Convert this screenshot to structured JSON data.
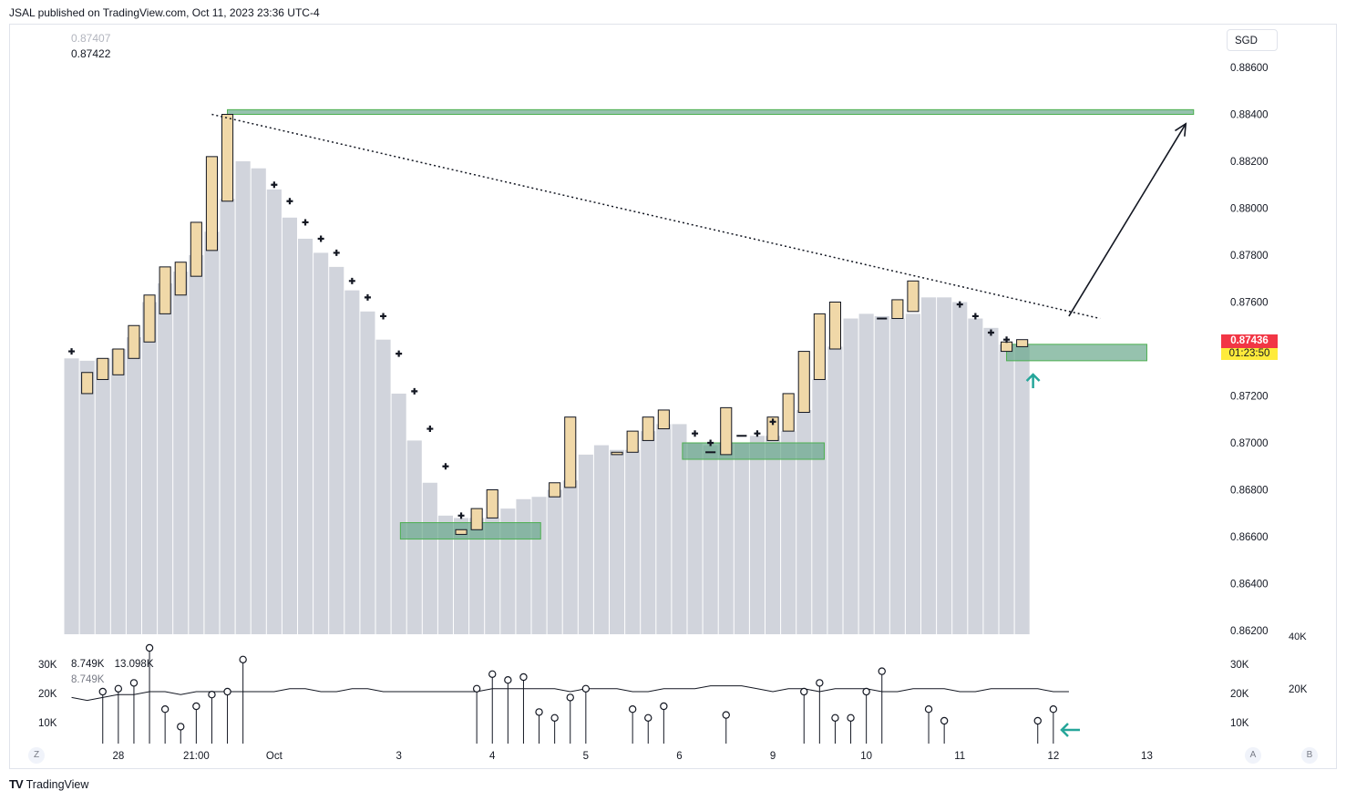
{
  "header": {
    "published": "JSAL published on TradingView.com, Oct 11, 2023 23:36 UTC-4"
  },
  "legend": {
    "prev_value": "0.87407",
    "cur_value": "0.87422"
  },
  "volume_legend": {
    "values": [
      "8.749K",
      "13.098K"
    ],
    "secondary": "8.749K"
  },
  "currency_button": "SGD",
  "last_price": {
    "price": "0.87436",
    "countdown": "01:23:50"
  },
  "footer": {
    "logo": "TV",
    "brand": "TradingView"
  },
  "buttons": {
    "zoom": "Z",
    "auto": "A",
    "log": "B"
  },
  "colors": {
    "up_body": "#f0d8a8",
    "bar_bg": "#d1d4dc",
    "zone_fill": "#6aa88c",
    "zone_border": "#4caf50",
    "last_price": "#f23645",
    "arrow": "#26a69a"
  },
  "chart_data": {
    "type": "candlestick",
    "y_ticks": [
      "0.88600",
      "0.88400",
      "0.88200",
      "0.88000",
      "0.87800",
      "0.87600",
      "0.87400",
      "0.87200",
      "0.87000",
      "0.86800",
      "0.86600",
      "0.86400",
      "0.86200"
    ],
    "ylim": [
      0.862,
      0.888
    ],
    "x_labels": [
      {
        "label": "28",
        "idx": 3.5
      },
      {
        "label": "21:00",
        "idx": 8.5
      },
      {
        "label": "Oct",
        "idx": 13.5
      },
      {
        "label": "3",
        "idx": 21.5
      },
      {
        "label": "4",
        "idx": 27.5
      },
      {
        "label": "5",
        "idx": 33.5
      },
      {
        "label": "6",
        "idx": 39.5
      },
      {
        "label": "9",
        "idx": 45.5
      },
      {
        "label": "10",
        "idx": 51.5
      },
      {
        "label": "11",
        "idx": 57.5
      },
      {
        "label": "12",
        "idx": 63.5
      },
      {
        "label": "13",
        "idx": 69.5
      }
    ],
    "bars": [
      {
        "h": 0.8736,
        "cross": 0.8739
      },
      {
        "h": 0.8735,
        "o": 0.8721,
        "c": 0.873
      },
      {
        "h": 0.8736,
        "o": 0.8727,
        "c": 0.8736
      },
      {
        "h": 0.874,
        "o": 0.8729,
        "c": 0.874
      },
      {
        "h": 0.8745,
        "o": 0.8736,
        "c": 0.875
      },
      {
        "h": 0.876,
        "o": 0.8743,
        "c": 0.8763
      },
      {
        "h": 0.8768,
        "o": 0.8755,
        "c": 0.8775
      },
      {
        "h": 0.8773,
        "o": 0.8763,
        "c": 0.8777
      },
      {
        "h": 0.878,
        "o": 0.8771,
        "c": 0.8794
      },
      {
        "h": 0.879,
        "o": 0.8782,
        "c": 0.8822
      },
      {
        "h": 0.8804,
        "o": 0.8803,
        "c": 0.884
      },
      {
        "h": 0.882
      },
      {
        "h": 0.8817
      },
      {
        "h": 0.8808,
        "cross": 0.881
      },
      {
        "h": 0.8796,
        "cross": 0.8803
      },
      {
        "h": 0.8787,
        "cross": 0.8794
      },
      {
        "h": 0.8781,
        "cross": 0.8787
      },
      {
        "h": 0.8775,
        "cross": 0.8781
      },
      {
        "h": 0.8765,
        "cross": 0.8769
      },
      {
        "h": 0.8756,
        "cross": 0.8762
      },
      {
        "h": 0.8744,
        "cross": 0.8754
      },
      {
        "h": 0.8721,
        "cross": 0.8738
      },
      {
        "h": 0.8701,
        "cross": 0.8722
      },
      {
        "h": 0.8683,
        "cross": 0.8706
      },
      {
        "h": 0.8669,
        "cross": 0.869
      },
      {
        "h": 0.8668,
        "o": 0.8663,
        "c": 0.8661,
        "cross": 0.8669
      },
      {
        "h": 0.8668,
        "o": 0.8663,
        "c": 0.8672
      },
      {
        "h": 0.8668,
        "o": 0.8668,
        "c": 0.868
      },
      {
        "h": 0.8672
      },
      {
        "h": 0.8676
      },
      {
        "h": 0.8677
      },
      {
        "h": 0.868,
        "o": 0.8677,
        "c": 0.8683
      },
      {
        "h": 0.8684,
        "o": 0.8681,
        "c": 0.8711
      },
      {
        "h": 0.8695
      },
      {
        "h": 0.8699
      },
      {
        "h": 0.8697,
        "o": 0.8696,
        "c": 0.8695
      },
      {
        "h": 0.8697,
        "o": 0.8696,
        "c": 0.8705
      },
      {
        "h": 0.8705,
        "o": 0.8701,
        "c": 0.8711
      },
      {
        "h": 0.8708,
        "o": 0.8706,
        "c": 0.8714
      },
      {
        "h": 0.8708
      },
      {
        "h": 0.87,
        "cross": 0.8704
      },
      {
        "h": 0.8699,
        "o": 0.8696,
        "c": 0.8696,
        "cross": 0.87
      },
      {
        "h": 0.87,
        "o": 0.8695,
        "c": 0.8715
      },
      {
        "h": 0.87,
        "o": 0.8703,
        "c": 0.8703
      },
      {
        "h": 0.8703,
        "cross": 0.8704
      },
      {
        "h": 0.8703,
        "o": 0.8701,
        "c": 0.8711,
        "cross": 0.8709
      },
      {
        "h": 0.8705,
        "o": 0.8705,
        "c": 0.8721
      },
      {
        "h": 0.8714,
        "o": 0.8713,
        "c": 0.8739
      },
      {
        "h": 0.8727,
        "o": 0.8727,
        "c": 0.8755
      },
      {
        "h": 0.8741,
        "o": 0.874,
        "c": 0.876
      },
      {
        "h": 0.8753
      },
      {
        "h": 0.8755
      },
      {
        "h": 0.8754,
        "o": 0.8753,
        "c": 0.8753
      },
      {
        "h": 0.8753,
        "o": 0.8753,
        "c": 0.8761
      },
      {
        "h": 0.8755,
        "o": 0.8756,
        "c": 0.8769
      },
      {
        "h": 0.8762
      },
      {
        "h": 0.8762
      },
      {
        "h": 0.876,
        "cross": 0.8759
      },
      {
        "h": 0.8753,
        "cross": 0.8754
      },
      {
        "h": 0.8749,
        "cross": 0.8747
      },
      {
        "h": 0.8742,
        "o": 0.8739,
        "c": 0.8743,
        "cross": 0.8744
      },
      {
        "h": 0.8742,
        "o": 0.8741,
        "c": 0.8744
      }
    ],
    "zones": [
      {
        "i0": 10.5,
        "i1": 72.5,
        "y0": 0.8842,
        "y1": 0.884
      },
      {
        "i0": 21.6,
        "i1": 30.6,
        "y0": 0.8666,
        "y1": 0.8659
      },
      {
        "i0": 39.7,
        "i1": 48.8,
        "y0": 0.87,
        "y1": 0.8693
      },
      {
        "i0": 60.5,
        "i1": 69.5,
        "y0": 0.8742,
        "y1": 0.8735
      }
    ],
    "trendline": {
      "i0": 9.5,
      "y0": 0.884,
      "i1": 66.5,
      "y1": 0.8753
    },
    "projection_arrow": {
      "i0": 64.5,
      "y0": 0.8754,
      "i1": 72.0,
      "y1": 0.8836
    },
    "volume": {
      "y_ticks": [
        "30K",
        "20K",
        "10K"
      ],
      "right_ticks": [
        "40K",
        "20K"
      ],
      "lollipops": [
        {
          "i": 2.5,
          "v": 15
        },
        {
          "i": 3.5,
          "v": 16
        },
        {
          "i": 4.5,
          "v": 18
        },
        {
          "i": 5.5,
          "v": 30
        },
        {
          "i": 6.5,
          "v": 9
        },
        {
          "i": 7.5,
          "v": 3
        },
        {
          "i": 8.5,
          "v": 10
        },
        {
          "i": 9.5,
          "v": 14
        },
        {
          "i": 10.5,
          "v": 15
        },
        {
          "i": 11.5,
          "v": 26
        },
        {
          "i": 26.5,
          "v": 16
        },
        {
          "i": 27.5,
          "v": 21
        },
        {
          "i": 28.5,
          "v": 19
        },
        {
          "i": 29.5,
          "v": 20
        },
        {
          "i": 30.5,
          "v": 8
        },
        {
          "i": 31.5,
          "v": 6
        },
        {
          "i": 32.5,
          "v": 13
        },
        {
          "i": 33.5,
          "v": 16
        },
        {
          "i": 36.5,
          "v": 9
        },
        {
          "i": 37.5,
          "v": 6
        },
        {
          "i": 38.5,
          "v": 10
        },
        {
          "i": 42.5,
          "v": 7
        },
        {
          "i": 47.5,
          "v": 15
        },
        {
          "i": 48.5,
          "v": 18
        },
        {
          "i": 49.5,
          "v": 6
        },
        {
          "i": 50.5,
          "v": 6
        },
        {
          "i": 51.5,
          "v": 15
        },
        {
          "i": 52.5,
          "v": 22
        },
        {
          "i": 55.5,
          "v": 9
        },
        {
          "i": 56.5,
          "v": 5
        },
        {
          "i": 62.5,
          "v": 5
        },
        {
          "i": 63.5,
          "v": 9
        }
      ],
      "ma": [
        13,
        12,
        13,
        14,
        14,
        15,
        15,
        14,
        15,
        15,
        15,
        15,
        15,
        15,
        16,
        16,
        15,
        15,
        16,
        16,
        15,
        15,
        15,
        15,
        15,
        15,
        15,
        16,
        16,
        16,
        16,
        16,
        15,
        16,
        16,
        16,
        15,
        15,
        16,
        16,
        16,
        17,
        17,
        17,
        16,
        15,
        16,
        16,
        15,
        16,
        16,
        16,
        15,
        15,
        16,
        16,
        16,
        15,
        15,
        16,
        16,
        16,
        16,
        15,
        15
      ]
    }
  }
}
